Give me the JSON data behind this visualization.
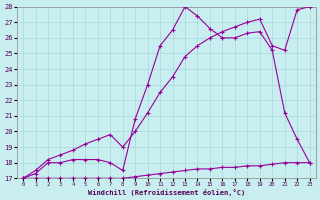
{
  "xlabel": "Windchill (Refroidissement éolien,°C)",
  "background_color": "#c8eef0",
  "grid_color": "#a8d8dc",
  "line_color": "#990099",
  "xlim": [
    -0.5,
    23.5
  ],
  "ylim": [
    17,
    28
  ],
  "xticks": [
    0,
    1,
    2,
    3,
    4,
    5,
    6,
    7,
    8,
    9,
    10,
    11,
    12,
    13,
    14,
    15,
    16,
    17,
    18,
    19,
    20,
    21,
    22,
    23
  ],
  "yticks": [
    17,
    18,
    19,
    20,
    21,
    22,
    23,
    24,
    25,
    26,
    27,
    28
  ],
  "line1_x": [
    0,
    1,
    2,
    3,
    4,
    5,
    6,
    7,
    8,
    9,
    10,
    11,
    12,
    13,
    14,
    15,
    16,
    17,
    18,
    19,
    20,
    21,
    22,
    23
  ],
  "line1_y": [
    17.0,
    17.0,
    17.0,
    17.0,
    17.0,
    17.0,
    17.0,
    17.0,
    17.0,
    17.1,
    17.2,
    17.3,
    17.4,
    17.5,
    17.6,
    17.6,
    17.7,
    17.7,
    17.8,
    17.8,
    17.9,
    18.0,
    18.0,
    18.0
  ],
  "line2_x": [
    0,
    1,
    2,
    3,
    4,
    5,
    6,
    7,
    8,
    9,
    10,
    11,
    12,
    13,
    14,
    15,
    16,
    17,
    18,
    19,
    20,
    21,
    22,
    23
  ],
  "line2_y": [
    17.0,
    17.3,
    18.0,
    18.0,
    18.2,
    18.2,
    18.2,
    18.0,
    17.5,
    20.8,
    23.0,
    25.5,
    26.5,
    28.0,
    27.4,
    26.6,
    26.0,
    26.0,
    26.3,
    26.4,
    25.2,
    21.2,
    19.5,
    18.0
  ],
  "line3_x": [
    0,
    1,
    2,
    3,
    4,
    5,
    6,
    7,
    8,
    9,
    10,
    11,
    12,
    13,
    14,
    15,
    16,
    17,
    18,
    19,
    20,
    21,
    22,
    23
  ],
  "line3_y": [
    17.0,
    17.5,
    18.2,
    18.5,
    18.8,
    19.2,
    19.5,
    19.8,
    19.0,
    20.0,
    21.2,
    22.5,
    23.5,
    24.8,
    25.5,
    26.0,
    26.4,
    26.7,
    27.0,
    27.2,
    25.5,
    25.2,
    27.8,
    28.0
  ]
}
